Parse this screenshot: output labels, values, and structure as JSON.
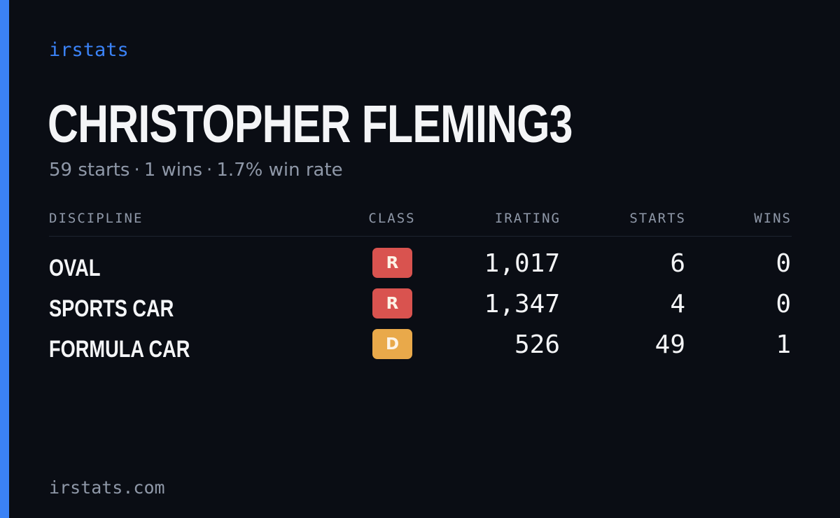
{
  "brand": "irstats",
  "driver": {
    "name": "CHRISTOPHER FLEMING3",
    "starts_text": "59 starts",
    "wins_text": "1 wins",
    "win_rate_text": "1.7% win rate",
    "separator": "·"
  },
  "table": {
    "headers": {
      "discipline": "DISCIPLINE",
      "class": "CLASS",
      "irating": "IRATING",
      "starts": "STARTS",
      "wins": "WINS"
    },
    "rows": [
      {
        "discipline": "OVAL",
        "class": "R",
        "class_color": "#d9534f",
        "irating": "1,017",
        "starts": "6",
        "wins": "0"
      },
      {
        "discipline": "SPORTS CAR",
        "class": "R",
        "class_color": "#d9534f",
        "irating": "1,347",
        "starts": "4",
        "wins": "0"
      },
      {
        "discipline": "FORMULA CAR",
        "class": "D",
        "class_color": "#e9a94a",
        "irating": "526",
        "starts": "49",
        "wins": "1"
      }
    ]
  },
  "footer": "irstats.com",
  "colors": {
    "background": "#0a0d14",
    "accent": "#3b82f6",
    "text_primary": "#f4f5f7",
    "text_muted": "#8f98a8",
    "class_r": "#d9534f",
    "class_d": "#e9a94a"
  }
}
